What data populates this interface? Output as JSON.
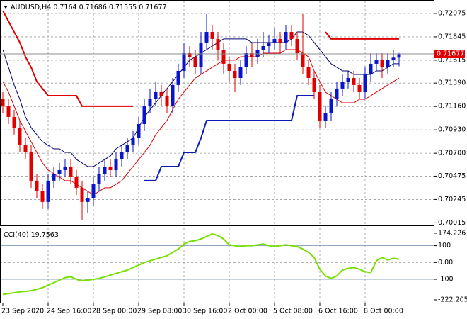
{
  "chart_data": [
    {
      "type": "candlestick",
      "symbol": "AUDUSD,H4",
      "categories": [
        "23 Sep 2020",
        null,
        null,
        null,
        null,
        null,
        null,
        null,
        "24 Sep 16:00",
        null,
        null,
        null,
        null,
        null,
        null,
        null,
        "28 Sep 00:00",
        null,
        null,
        null,
        null,
        null,
        null,
        null,
        "29 Sep 08:00",
        null,
        null,
        null,
        null,
        null,
        null,
        null,
        "30 Sep 16:00",
        null,
        null,
        null,
        null,
        null,
        null,
        null,
        "2 Oct 00:00",
        null,
        null,
        null,
        null,
        null,
        null,
        null,
        "5 Oct 08:00",
        null,
        null,
        null,
        null,
        null,
        null,
        null,
        "6 Oct 16:00",
        null,
        null,
        null,
        null,
        null,
        null,
        null,
        "8 Oct 00:00",
        null,
        null,
        null,
        null,
        null,
        null
      ],
      "candles": [
        [
          0.71231,
          0.71301,
          0.71092,
          0.71162
        ],
        [
          0.71162,
          0.71231,
          0.70987,
          0.71057
        ],
        [
          0.71057,
          0.71127,
          0.70883,
          0.70952
        ],
        [
          0.70952,
          0.71022,
          0.70708,
          0.70778
        ],
        [
          0.70778,
          0.70848,
          0.70639,
          0.70708
        ],
        [
          0.70708,
          0.70778,
          0.7036,
          0.7043
        ],
        [
          0.7043,
          0.70499,
          0.70255,
          0.70325
        ],
        [
          0.70325,
          0.70395,
          0.70151,
          0.70221
        ],
        [
          0.70221,
          0.70499,
          0.70151,
          0.7043
        ],
        [
          0.7043,
          0.70569,
          0.7036,
          0.70499
        ],
        [
          0.70499,
          0.70604,
          0.7043,
          0.70534
        ],
        [
          0.70534,
          0.70639,
          0.70465,
          0.70569
        ],
        [
          0.70569,
          0.70639,
          0.70395,
          0.70465
        ],
        [
          0.70465,
          0.70534,
          0.7029,
          0.7036
        ],
        [
          0.7036,
          0.7043,
          0.70046,
          0.70221
        ],
        [
          0.70221,
          0.70325,
          0.70116,
          0.70255
        ],
        [
          0.70255,
          0.70465,
          0.70186,
          0.70395
        ],
        [
          0.70395,
          0.70569,
          0.70325,
          0.70499
        ],
        [
          0.70499,
          0.70639,
          0.7043,
          0.70569
        ],
        [
          0.70569,
          0.70639,
          0.70465,
          0.70534
        ],
        [
          0.70534,
          0.70708,
          0.70465,
          0.70639
        ],
        [
          0.70639,
          0.70778,
          0.70569,
          0.70708
        ],
        [
          0.70708,
          0.70848,
          0.70639,
          0.70778
        ],
        [
          0.70778,
          0.70918,
          0.70708,
          0.70848
        ],
        [
          0.70848,
          0.71057,
          0.70778,
          0.70987
        ],
        [
          0.70987,
          0.71231,
          0.70918,
          0.71162
        ],
        [
          0.71162,
          0.71336,
          0.71092,
          0.71231
        ],
        [
          0.71231,
          0.71405,
          0.71162,
          0.71301
        ],
        [
          0.71301,
          0.71371,
          0.71162,
          0.71266
        ],
        [
          0.71266,
          0.71336,
          0.71092,
          0.71162
        ],
        [
          0.71162,
          0.7144,
          0.71092,
          0.71371
        ],
        [
          0.71371,
          0.7158,
          0.71301,
          0.7151
        ],
        [
          0.7151,
          0.71789,
          0.7144,
          0.71684
        ],
        [
          0.71684,
          0.71754,
          0.71545,
          0.71649
        ],
        [
          0.71649,
          0.71719,
          0.71475,
          0.71545
        ],
        [
          0.71545,
          0.71893,
          0.71475,
          0.71789
        ],
        [
          0.71789,
          0.72068,
          0.71719,
          0.71893
        ],
        [
          0.71893,
          0.71963,
          0.71719,
          0.71824
        ],
        [
          0.71824,
          0.71893,
          0.71615,
          0.71719
        ],
        [
          0.71719,
          0.71789,
          0.71475,
          0.7158
        ],
        [
          0.7158,
          0.71649,
          0.71405,
          0.7151
        ],
        [
          0.7151,
          0.7158,
          0.71301,
          0.7144
        ],
        [
          0.7144,
          0.71615,
          0.71371,
          0.71545
        ],
        [
          0.71545,
          0.71754,
          0.71475,
          0.71684
        ],
        [
          0.71684,
          0.71789,
          0.71545,
          0.71649
        ],
        [
          0.71649,
          0.71824,
          0.7158,
          0.71719
        ],
        [
          0.71719,
          0.71893,
          0.71649,
          0.71754
        ],
        [
          0.71754,
          0.71858,
          0.71684,
          0.71789
        ],
        [
          0.71789,
          0.71928,
          0.71719,
          0.71824
        ],
        [
          0.71824,
          0.71893,
          0.71684,
          0.71789
        ],
        [
          0.71789,
          0.71963,
          0.71719,
          0.71893
        ],
        [
          0.71893,
          0.71963,
          0.71754,
          0.71824
        ],
        [
          0.71824,
          0.71893,
          0.71615,
          0.71684
        ],
        [
          0.71684,
          0.72068,
          0.71475,
          0.71545
        ],
        [
          0.71545,
          0.71615,
          0.71371,
          0.7144
        ],
        [
          0.7144,
          0.7151,
          0.71231,
          0.71301
        ],
        [
          0.71301,
          0.71371,
          0.70952,
          0.71022
        ],
        [
          0.71022,
          0.71162,
          0.70952,
          0.71092
        ],
        [
          0.71092,
          0.71301,
          0.71022,
          0.71231
        ],
        [
          0.71231,
          0.71405,
          0.71162,
          0.71336
        ],
        [
          0.71336,
          0.71475,
          0.71266,
          0.71405
        ],
        [
          0.71405,
          0.7151,
          0.71336,
          0.7144
        ],
        [
          0.7144,
          0.7151,
          0.71301,
          0.71371
        ],
        [
          0.71371,
          0.7144,
          0.71231,
          0.71301
        ],
        [
          0.71301,
          0.71545,
          0.71231,
          0.71475
        ],
        [
          0.71475,
          0.71684,
          0.71405,
          0.7158
        ],
        [
          0.7158,
          0.71684,
          0.7151,
          0.71615
        ],
        [
          0.71615,
          0.71684,
          0.7144,
          0.71545
        ],
        [
          0.71545,
          0.71684,
          0.71475,
          0.71615
        ],
        [
          0.71615,
          0.71719,
          0.71545,
          0.7164
        ],
        [
          0.7164,
          0.71686,
          0.71555,
          0.71677
        ]
      ],
      "up_color": "#0a14c8",
      "down_color": "#e00000",
      "price_line_color": "#8c8c8c",
      "series": [
        {
          "color": "#00006e",
          "width": 1,
          "values": [
            0.71719,
            0.71545,
            0.71371,
            0.71231,
            0.71057,
            0.70952,
            0.70883,
            0.70813,
            0.70778,
            0.70743,
            0.70743,
            0.70708,
            0.70708,
            0.70639,
            0.70604,
            0.70569,
            0.70569,
            0.70604,
            0.70639,
            0.70674,
            0.70743,
            0.70778,
            0.70813,
            0.70848,
            0.70952,
            0.71057,
            0.71127,
            0.71196,
            0.71266,
            0.71336,
            0.71405,
            0.71475,
            0.71545,
            0.71615,
            0.71649,
            0.71684,
            0.71719,
            0.71754,
            0.71789,
            0.71824,
            0.71824,
            0.71824,
            0.71824,
            0.71824,
            0.71789,
            0.71789,
            0.71789,
            0.71789,
            0.71789,
            0.71789,
            0.71789,
            0.71824,
            0.71893,
            0.71893,
            0.71858,
            0.71789,
            0.71719,
            0.71649,
            0.7158,
            0.71545,
            0.7151,
            0.7151,
            0.71475,
            0.71475,
            0.71475,
            0.71475,
            0.7151,
            0.7151,
            0.71545,
            0.7158,
            0.7158
          ]
        },
        {
          "color": "#e00000",
          "width": 1,
          "values": [
            0.71405,
            0.71301,
            0.71162,
            0.71022,
            0.70918,
            0.70813,
            0.70708,
            0.70604,
            0.70534,
            0.70499,
            0.70465,
            0.7043,
            0.7043,
            0.70395,
            0.7036,
            0.70325,
            0.7029,
            0.70325,
            0.7036,
            0.7036,
            0.70395,
            0.7043,
            0.70499,
            0.70569,
            0.70639,
            0.70708,
            0.70778,
            0.70883,
            0.70952,
            0.71022,
            0.71127,
            0.71231,
            0.71301,
            0.71371,
            0.7144,
            0.71475,
            0.7151,
            0.71545,
            0.7158,
            0.71615,
            0.71615,
            0.71615,
            0.71649,
            0.71649,
            0.71649,
            0.71649,
            0.71684,
            0.71684,
            0.71684,
            0.71684,
            0.71719,
            0.71719,
            0.71719,
            0.71684,
            0.71649,
            0.7151,
            0.71405,
            0.71301,
            0.71266,
            0.71231,
            0.71196,
            0.71196,
            0.71196,
            0.71231,
            0.71231,
            0.71266,
            0.71301,
            0.71336,
            0.71371,
            0.71405,
            0.7144
          ]
        },
        {
          "color": "#e00000",
          "width": 2,
          "values": [
            0.72102,
            0.71998,
            0.71893,
            0.71789,
            0.71649,
            0.71545,
            0.71405,
            0.71336,
            0.71266,
            0.71266,
            0.71266,
            0.71266,
            0.71266,
            0.71266,
            0.71162,
            0.71162,
            0.71162,
            0.71162,
            0.71162,
            0.71162,
            0.71162,
            0.71162,
            0.71162,
            0.71162,
            null,
            null,
            null,
            null,
            null,
            null,
            null,
            null,
            null,
            null,
            null,
            null,
            null,
            null,
            null,
            null,
            null,
            null,
            null,
            null,
            null,
            null,
            null,
            null,
            null,
            null,
            null,
            null,
            null,
            null,
            null,
            null,
            null,
            0.71893,
            0.71824,
            0.71824,
            0.71824,
            0.71824,
            0.71824,
            0.71824,
            0.71824,
            0.71824,
            0.71824,
            0.71824,
            0.71824,
            0.71824,
            0.71824
          ]
        },
        {
          "color": "#0a1eb4",
          "width": 2,
          "values": [
            null,
            null,
            null,
            null,
            null,
            null,
            null,
            null,
            null,
            null,
            null,
            null,
            null,
            null,
            null,
            null,
            null,
            null,
            null,
            null,
            null,
            null,
            null,
            null,
            null,
            0.7043,
            0.7043,
            0.7043,
            0.70569,
            0.70569,
            0.70569,
            0.70569,
            0.70708,
            0.70708,
            0.70708,
            0.70848,
            0.71022,
            0.71022,
            0.71022,
            0.71022,
            0.71022,
            0.71022,
            0.71022,
            0.71022,
            0.71022,
            0.71022,
            0.71022,
            0.71022,
            0.71022,
            0.71022,
            0.71022,
            0.71022,
            0.71266,
            0.71266,
            0.71266,
            0.71266,
            null,
            null,
            null,
            null,
            null,
            null,
            null,
            null,
            null,
            null,
            null,
            null,
            null,
            null,
            null
          ]
        }
      ],
      "ylim": [
        0.6999,
        0.72207
      ],
      "yticks": [
        0.72075,
        0.71845,
        0.71615,
        {
          "value": 0.7139,
          "label": "0.71390"
        },
        {
          "value": 0.7116,
          "label": "0.71160"
        },
        {
          "value": 0.7093,
          "label": "0.70930"
        },
        {
          "value": 0.707,
          "label": "0.70700"
        },
        0.70475,
        0.70245,
        0.70015
      ],
      "grid": true
    },
    {
      "type": "line",
      "name": "CCI(40)",
      "color": "#78e000",
      "values": [
        -190,
        -185,
        -180,
        -175,
        -172,
        -168,
        -160,
        -150,
        -135,
        -120,
        -105,
        -90,
        -85,
        -100,
        -110,
        -105,
        -100,
        -95,
        -85,
        -75,
        -65,
        -55,
        -45,
        -30,
        -15,
        0,
        10,
        20,
        30,
        40,
        60,
        80,
        110,
        125,
        130,
        140,
        155,
        170,
        160,
        140,
        105,
        100,
        95,
        100,
        100,
        105,
        110,
        100,
        95,
        100,
        105,
        100,
        95,
        80,
        60,
        30,
        -40,
        -80,
        -95,
        -80,
        -45,
        -35,
        -30,
        -40,
        -55,
        -60,
        10,
        30,
        15,
        25,
        19.7563
      ],
      "ylim": [
        -222.2053,
        174.226
      ],
      "yticks": [
        174.226,
        100,
        {
          "value": 0,
          "label": "0.00"
        },
        -100,
        -222.2053
      ]
    }
  ]
}
